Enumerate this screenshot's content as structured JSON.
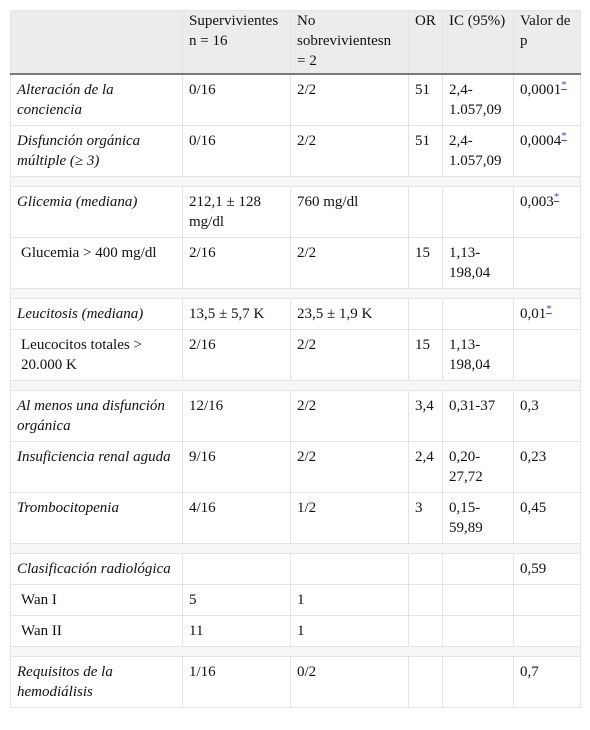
{
  "headers": {
    "col1": "",
    "col2": "Supervivientesn = 16",
    "col3": "No sobrevivientesn = 2",
    "col4": "OR",
    "col5": "IC (95%)",
    "col6": "Valor de p"
  },
  "footnote_mark": "*",
  "rows": [
    {
      "label": "Alteración de la conciencia",
      "surv": "0/16",
      "nonsurv": "2/2",
      "or": "51",
      "ci": "2,4-1.057,09",
      "p": "0,0001"
    },
    {
      "label": "Disfunción orgánica múltiple (≥ 3)",
      "surv": "0/16",
      "nonsurv": "2/2",
      "or": "51",
      "ci": "2,4-1.057,09",
      "p": "0,0004"
    },
    {
      "label": "Glicemia (mediana)",
      "surv": "212,1 ± 128 mg/dl",
      "nonsurv": "760 mg/dl",
      "or": "",
      "ci": "",
      "p": "0,003"
    },
    {
      "label": "Glucemia > 400 mg/dl",
      "surv": "2/16",
      "nonsurv": "2/2",
      "or": "15",
      "ci": "1,13-198,04",
      "p": ""
    },
    {
      "label": "Leucitosis (mediana)",
      "surv": "13,5 ± 5,7 K",
      "nonsurv": "23,5 ± 1,9 K",
      "or": "",
      "ci": "",
      "p": "0,01"
    },
    {
      "label": "Leucocitos totales > 20.000 K",
      "surv": "2/16",
      "nonsurv": "2/2",
      "or": "15",
      "ci": "1,13-198,04",
      "p": ""
    },
    {
      "label": "Al menos una disfunción orgánica",
      "surv": "12/16",
      "nonsurv": "2/2",
      "or": "3,4",
      "ci": "0,31-37",
      "p": "0,3"
    },
    {
      "label": "Insuficiencia renal aguda",
      "surv": "9/16",
      "nonsurv": "2/2",
      "or": "2,4",
      "ci": "0,20-27,72",
      "p": "0,23"
    },
    {
      "label": "Trombocitopenia",
      "surv": "4/16",
      "nonsurv": "1/2",
      "or": "3",
      "ci": "0,15-59,89",
      "p": "0,45"
    },
    {
      "label": "Clasificación radiológica",
      "surv": "",
      "nonsurv": "",
      "or": "",
      "ci": "",
      "p": "0,59"
    },
    {
      "label": "Wan I",
      "surv": "5",
      "nonsurv": "1",
      "or": "",
      "ci": "",
      "p": ""
    },
    {
      "label": "Wan II",
      "surv": "11",
      "nonsurv": "1",
      "or": "",
      "ci": "",
      "p": ""
    },
    {
      "label": "Requisitos de la hemodiálisis",
      "surv": "1/16",
      "nonsurv": "0/2",
      "or": "",
      "ci": "",
      "p": "0,7"
    }
  ]
}
